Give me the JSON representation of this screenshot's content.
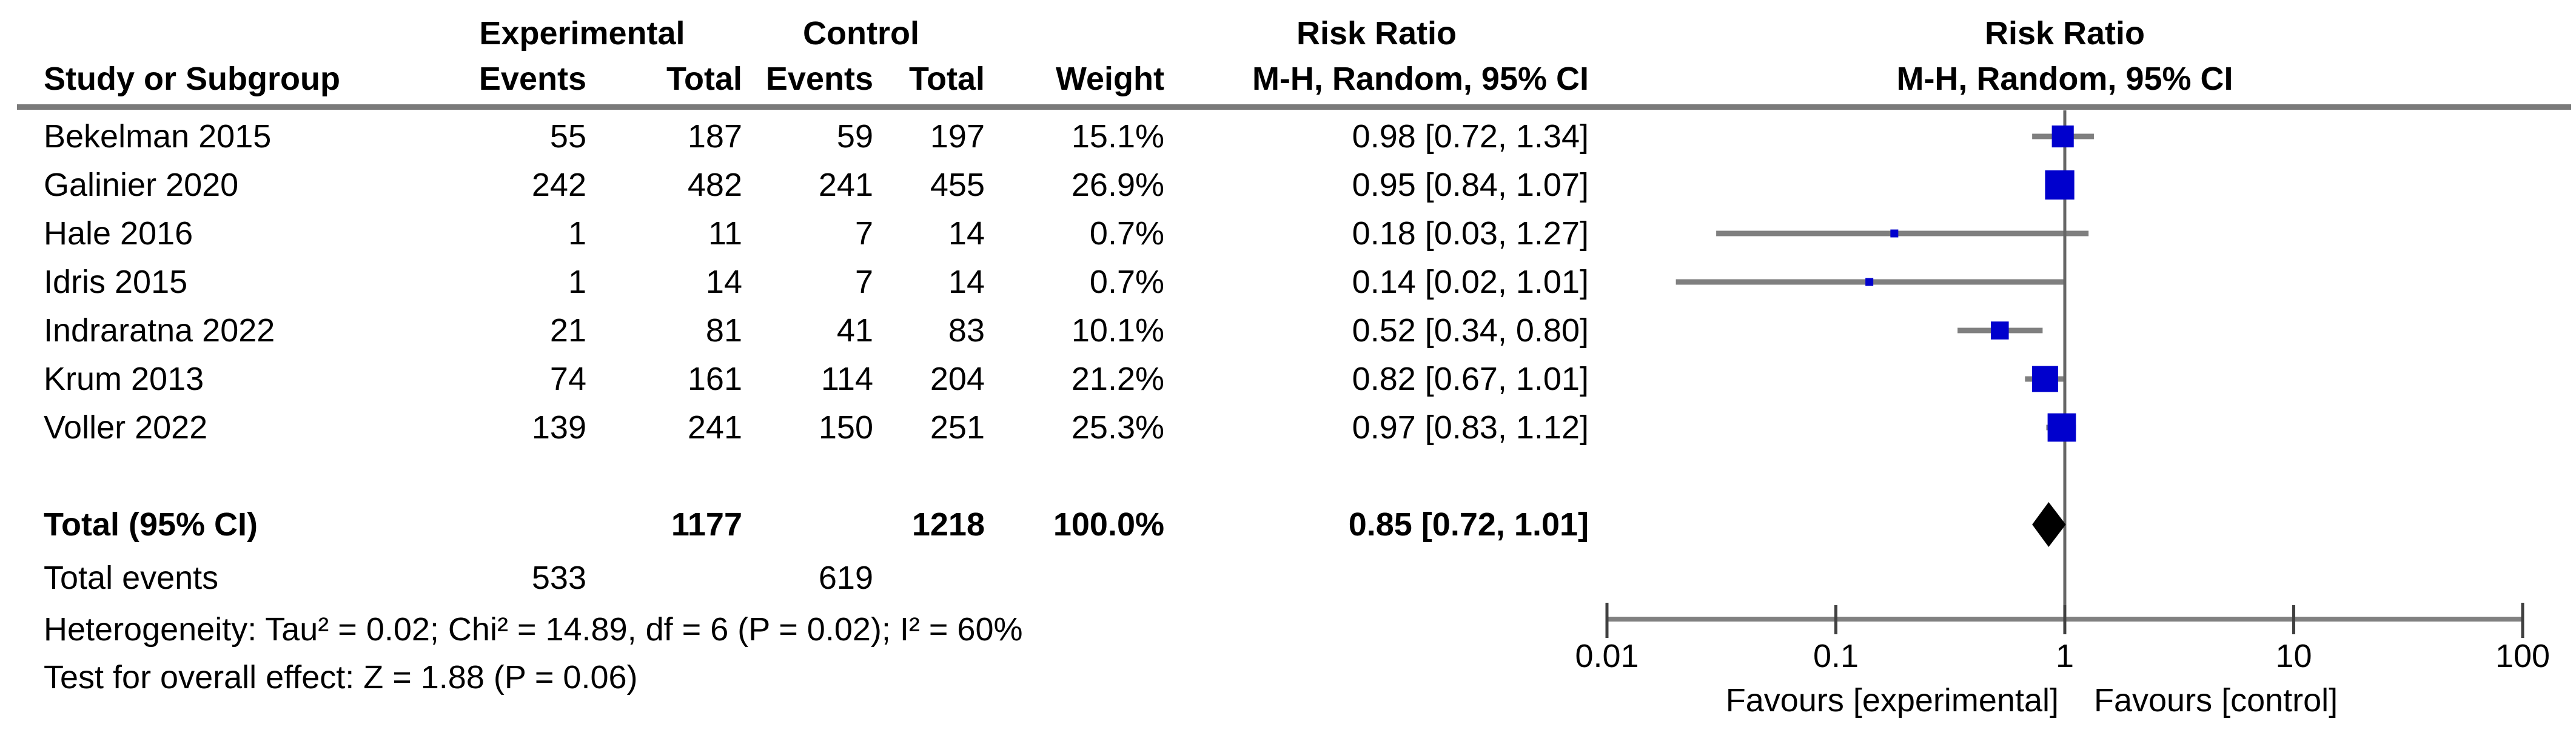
{
  "header": {
    "study_or_subgroup": "Study or Subgroup",
    "experimental": "Experimental",
    "control": "Control",
    "events": "Events",
    "total": "Total",
    "weight": "Weight",
    "risk_ratio": "Risk Ratio",
    "method": "M-H, Random, 95% CI",
    "risk_ratio_plot": "Risk Ratio",
    "method_plot": "M-H, Random, 95% CI"
  },
  "totals": {
    "label": "Total (95% CI)",
    "exp_total": "1177",
    "ctrl_total": "1218",
    "weight": "100.0%",
    "ci_text": "0.85 [0.72, 1.01]",
    "events_label": "Total events",
    "exp_events": "533",
    "ctrl_events": "619"
  },
  "footnotes": {
    "heterogeneity": "Heterogeneity: Tau² = 0.02; Chi² = 14.89, df = 6 (P = 0.02); I² = 60%",
    "overall_effect": "Test for overall effect: Z = 1.88 (P = 0.06)"
  },
  "axis": {
    "ticks": [
      "0.01",
      "0.1",
      "1",
      "10",
      "100"
    ],
    "favours_left": "Favours [experimental]",
    "favours_right": "Favours [control]"
  },
  "chart_data": {
    "type": "scatter",
    "subtype": "forest_plot",
    "title": "Risk Ratio",
    "method": "M-H, Random, 95% CI",
    "x_scale": "log10",
    "x_ticks": [
      0.01,
      0.1,
      1,
      10,
      100
    ],
    "xlim": [
      0.01,
      100
    ],
    "null_line": 1,
    "studies": [
      {
        "study": "Bekelman 2015",
        "exp_events": "55",
        "exp_total": "187",
        "ctrl_events": "59",
        "ctrl_total": "197",
        "weight_text": "15.1%",
        "weight_pct": 15.1,
        "rr": 0.98,
        "ci_low": 0.72,
        "ci_high": 1.34,
        "ci_text": "0.98 [0.72, 1.34]"
      },
      {
        "study": "Galinier 2020",
        "exp_events": "242",
        "exp_total": "482",
        "ctrl_events": "241",
        "ctrl_total": "455",
        "weight_text": "26.9%",
        "weight_pct": 26.9,
        "rr": 0.95,
        "ci_low": 0.84,
        "ci_high": 1.07,
        "ci_text": "0.95 [0.84, 1.07]"
      },
      {
        "study": "Hale 2016",
        "exp_events": "1",
        "exp_total": "11",
        "ctrl_events": "7",
        "ctrl_total": "14",
        "weight_text": "0.7%",
        "weight_pct": 0.7,
        "rr": 0.18,
        "ci_low": 0.03,
        "ci_high": 1.27,
        "ci_text": "0.18 [0.03, 1.27]"
      },
      {
        "study": "Idris 2015",
        "exp_events": "1",
        "exp_total": "14",
        "ctrl_events": "7",
        "ctrl_total": "14",
        "weight_text": "0.7%",
        "weight_pct": 0.7,
        "rr": 0.14,
        "ci_low": 0.02,
        "ci_high": 1.01,
        "ci_text": "0.14 [0.02, 1.01]"
      },
      {
        "study": "Indraratna 2022",
        "exp_events": "21",
        "exp_total": "81",
        "ctrl_events": "41",
        "ctrl_total": "83",
        "weight_text": "10.1%",
        "weight_pct": 10.1,
        "rr": 0.52,
        "ci_low": 0.34,
        "ci_high": 0.8,
        "ci_text": "0.52 [0.34, 0.80]"
      },
      {
        "study": "Krum 2013",
        "exp_events": "74",
        "exp_total": "161",
        "ctrl_events": "114",
        "ctrl_total": "204",
        "weight_text": "21.2%",
        "weight_pct": 21.2,
        "rr": 0.82,
        "ci_low": 0.67,
        "ci_high": 1.01,
        "ci_text": "0.82 [0.67, 1.01]"
      },
      {
        "study": "Voller 2022",
        "exp_events": "139",
        "exp_total": "241",
        "ctrl_events": "150",
        "ctrl_total": "251",
        "weight_text": "25.3%",
        "weight_pct": 25.3,
        "rr": 0.97,
        "ci_low": 0.83,
        "ci_high": 1.12,
        "ci_text": "0.97 [0.83, 1.12]"
      }
    ],
    "total": {
      "rr": 0.85,
      "ci_low": 0.72,
      "ci_high": 1.01,
      "weight_pct": 100.0
    },
    "colors": {
      "marker": "#0000cd",
      "ci_line": "#7f7f7f",
      "diamond": "#000000",
      "axis": "#808080",
      "null_line": "#666666"
    }
  }
}
